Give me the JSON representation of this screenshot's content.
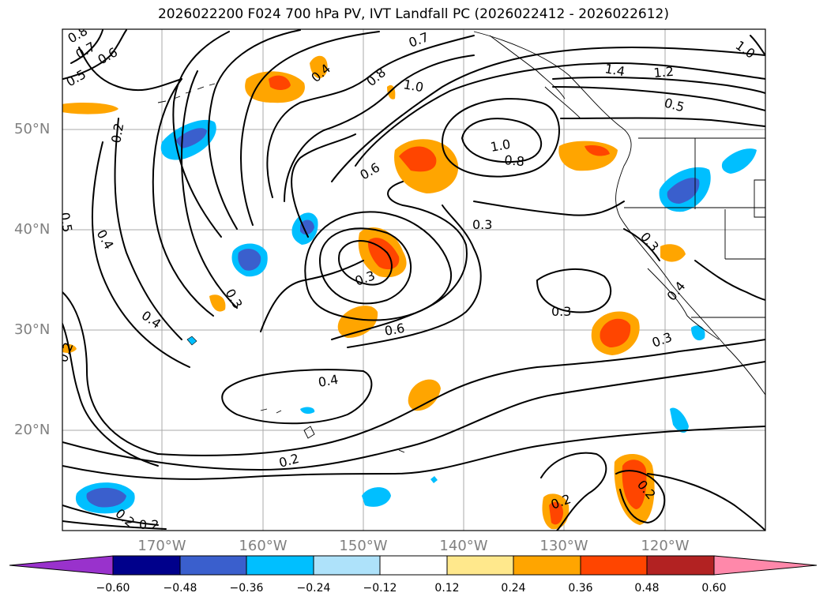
{
  "title": "2026022200 F024 700 hPa PV, IVT Landfall PC (2026022412 - 2026022612)",
  "axes": {
    "lat_labels": [
      "50°N",
      "40°N",
      "30°N",
      "20°N"
    ],
    "lon_labels": [
      "170°W",
      "160°W",
      "150°W",
      "140°W",
      "130°W",
      "120°W"
    ]
  },
  "contour_labels": [
    "0.8",
    "0.7",
    "0.6",
    "0.5",
    "0.4",
    "0.7",
    "0.8",
    "1.0",
    "1.4",
    "1.2",
    "0.5",
    "1.0",
    "0.2",
    "0.6",
    "1.0",
    "0.8",
    "0.5",
    "0.4",
    "0.3",
    "0.3",
    "0.3",
    "0.4",
    "0.3",
    "0.4",
    "0.3",
    "0.6",
    "0.4",
    "0.3",
    "0.2",
    "0.2",
    "0.2",
    "0.2",
    "0.2",
    "0.2"
  ],
  "colorbar": {
    "ticks": [
      "−0.60",
      "−0.48",
      "−0.36",
      "−0.24",
      "−0.12",
      "0.12",
      "0.24",
      "0.36",
      "0.48",
      "0.60"
    ],
    "colors": [
      "#9932cc",
      "#00008b",
      "#3a5fcd",
      "#00bfff",
      "#aee2fa",
      "#ffffff",
      "#ffe88c",
      "#ffa500",
      "#ff4500",
      "#b22222",
      "#ff88aa"
    ]
  }
}
